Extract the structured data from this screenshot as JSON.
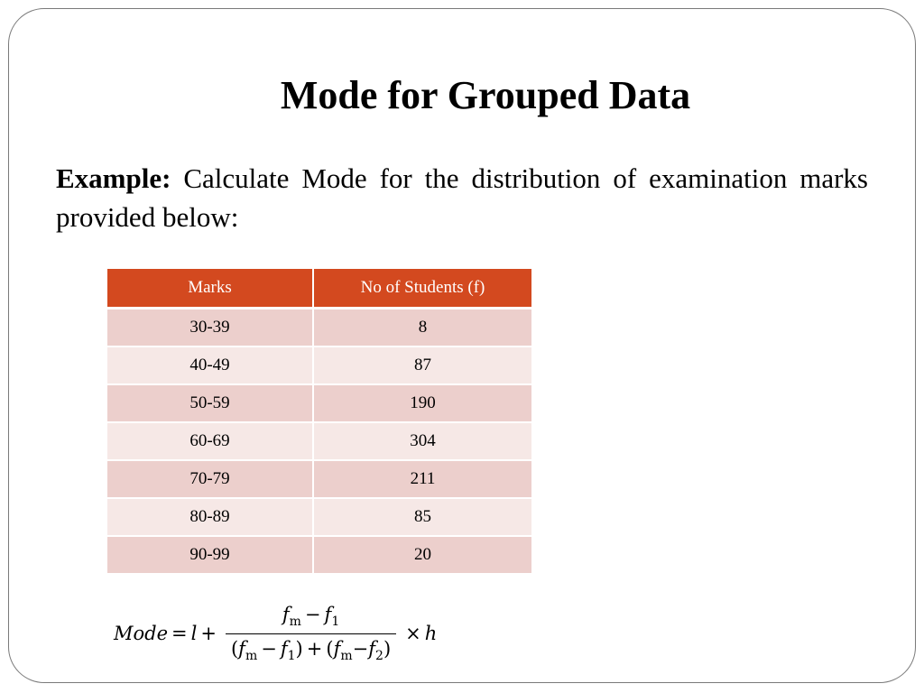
{
  "title": "Mode for Grouped Data",
  "example": {
    "lead": "Example:",
    "text": "Calculate Mode for the distribution of examination marks provided below:"
  },
  "table": {
    "headers": [
      "Marks",
      "No of Students (f)"
    ],
    "rows": [
      [
        "30-39",
        "8"
      ],
      [
        "40-49",
        "87"
      ],
      [
        "50-59",
        "190"
      ],
      [
        "60-69",
        "304"
      ],
      [
        "70-79",
        "211"
      ],
      [
        "80-89",
        "85"
      ],
      [
        "90-99",
        "20"
      ]
    ]
  },
  "formula": {
    "lhs": "Mode",
    "equals": "=",
    "l": "l",
    "plus": "+",
    "times": "×",
    "h": "h",
    "f": "f",
    "sub_m": "m",
    "sub_1": "1",
    "sub_2": "2",
    "minus": "−",
    "open_paren": "(",
    "close_paren": ")"
  },
  "colors": {
    "header_bg": "#d3491f",
    "row_odd_bg": "#eccfcc",
    "row_even_bg": "#f6e8e6",
    "border": "#7a7a7a"
  }
}
